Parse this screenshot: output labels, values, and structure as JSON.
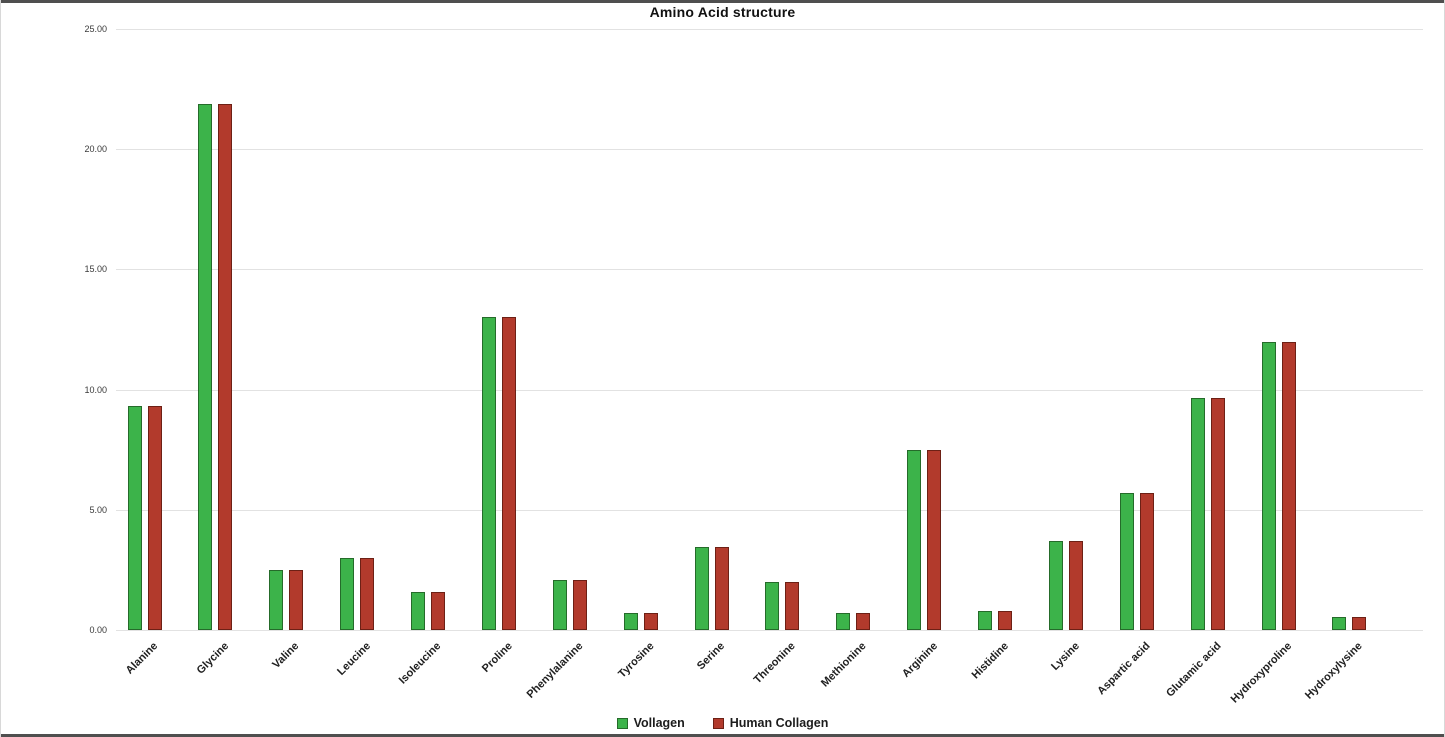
{
  "chart_data": {
    "type": "bar",
    "title": "Amino Acid structure",
    "categories": [
      "Alanine",
      "Glycine",
      "Valine",
      "Leucine",
      "Isoleucine",
      "Proline",
      "Phenylalanine",
      "Tyrosine",
      "Serine",
      "Threonine",
      "Methionine",
      "Arginine",
      "Histidine",
      "Lysine",
      "Aspartic acid",
      "Glutamic acid",
      "Hydroxyproline",
      "Hydroxylysine"
    ],
    "series": [
      {
        "name": "Vollagen",
        "fill_color": "#3cb34a",
        "border_color": "#256b2a",
        "values": [
          9.3,
          21.9,
          2.5,
          3.0,
          1.6,
          13.0,
          2.1,
          0.7,
          3.45,
          2.0,
          0.7,
          7.5,
          0.8,
          3.7,
          5.7,
          9.65,
          12.0,
          0.55
        ]
      },
      {
        "name": "Human Collagen",
        "fill_color": "#b23a2c",
        "border_color": "#6d2015",
        "values": [
          9.3,
          21.9,
          2.5,
          3.0,
          1.6,
          13.0,
          2.1,
          0.7,
          3.45,
          2.0,
          0.7,
          7.5,
          0.8,
          3.7,
          5.7,
          9.65,
          12.0,
          0.55
        ]
      }
    ],
    "ylim": [
      0,
      25
    ],
    "yticks": [
      "0.00",
      "5.00",
      "10.00",
      "15.00",
      "20.00",
      "25.00"
    ],
    "grid": "horizontal",
    "legend_position": "bottom"
  }
}
